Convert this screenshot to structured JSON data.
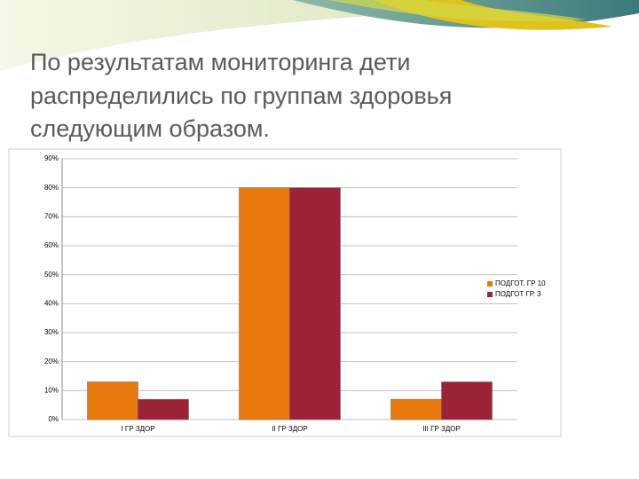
{
  "chart_data": {
    "type": "bar",
    "title": "По результатам мониторинга дети распределились по группам здоровья следующим образом.",
    "categories": [
      "I ГР ЗДОР",
      "II ГР ЗДОР",
      "III ГР ЗДОР"
    ],
    "series": [
      {
        "name": "ПОДГОТ. ГР 10",
        "color": "#e8790d",
        "values": [
          13,
          80,
          7
        ]
      },
      {
        "name": "ПОДГОТ ГР. 3",
        "color": "#9b2335",
        "values": [
          7,
          80,
          13
        ]
      }
    ],
    "ylim": [
      0,
      90
    ],
    "yticks": [
      {
        "value": 0,
        "label": "0%"
      },
      {
        "value": 10,
        "label": "10%"
      },
      {
        "value": 20,
        "label": "20%"
      },
      {
        "value": 30,
        "label": "30%"
      },
      {
        "value": 40,
        "label": "40%"
      },
      {
        "value": 50,
        "label": "50%"
      },
      {
        "value": 60,
        "label": "60%"
      },
      {
        "value": 70,
        "label": "70%"
      },
      {
        "value": 80,
        "label": "80%"
      },
      {
        "value": 90,
        "label": "90%"
      }
    ],
    "grid": true,
    "legend": "right"
  }
}
